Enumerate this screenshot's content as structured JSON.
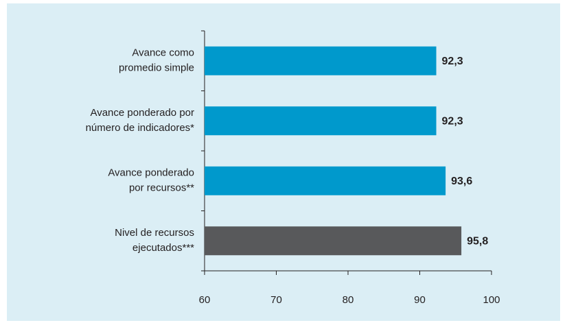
{
  "chart_data": {
    "type": "bar",
    "orientation": "horizontal",
    "categories": [
      [
        "Avance como",
        "promedio simple"
      ],
      [
        "Avance ponderado por",
        "número de indicadores*"
      ],
      [
        "Avance ponderado",
        "por recursos**"
      ],
      [
        "Nivel de recursos",
        "ejecutados***"
      ]
    ],
    "values": [
      92.3,
      92.3,
      93.6,
      95.8
    ],
    "value_labels": [
      "92,3",
      "92,3",
      "93,6",
      "95,8"
    ],
    "colors": [
      "#0099cc",
      "#0099cc",
      "#0099cc",
      "#58595b"
    ],
    "xlim": [
      60,
      100
    ],
    "xticks": [
      60,
      70,
      80,
      90,
      100
    ],
    "grid": false
  }
}
